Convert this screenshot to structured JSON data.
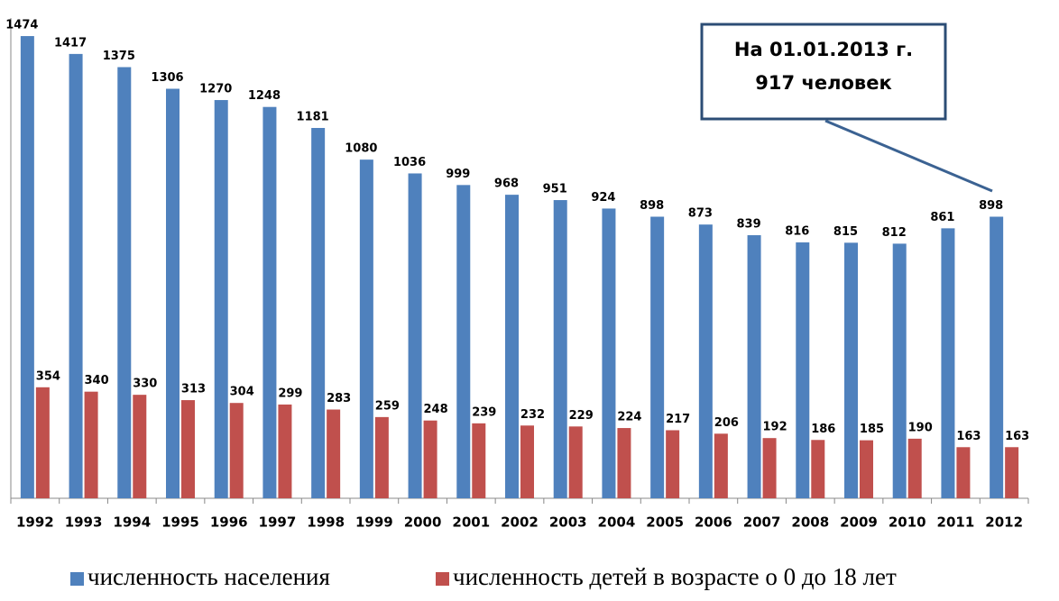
{
  "chart_data": {
    "type": "bar",
    "categories": [
      "1992",
      "1993",
      "1994",
      "1995",
      "1996",
      "1997",
      "1998",
      "1999",
      "2000",
      "2001",
      "2002",
      "2003",
      "2004",
      "2005",
      "2006",
      "2007",
      "2008",
      "2009",
      "2010",
      "2011",
      "2012"
    ],
    "series": [
      {
        "name": "численность населения",
        "color": "#4f81bd",
        "values": [
          1474,
          1417,
          1375,
          1306,
          1270,
          1248,
          1181,
          1080,
          1036,
          999,
          968,
          951,
          924,
          898,
          873,
          839,
          816,
          815,
          812,
          861,
          898
        ]
      },
      {
        "name": "численность детей в возрасте о 0 до 18 лет",
        "color": "#c0504d",
        "values": [
          354,
          340,
          330,
          313,
          304,
          299,
          283,
          259,
          248,
          239,
          232,
          229,
          224,
          217,
          206,
          192,
          186,
          185,
          190,
          163,
          163
        ]
      }
    ],
    "ylim": [
      0,
      1500
    ],
    "annotation": [
      "На 01.01.2013 г.",
      "917 человек"
    ]
  }
}
